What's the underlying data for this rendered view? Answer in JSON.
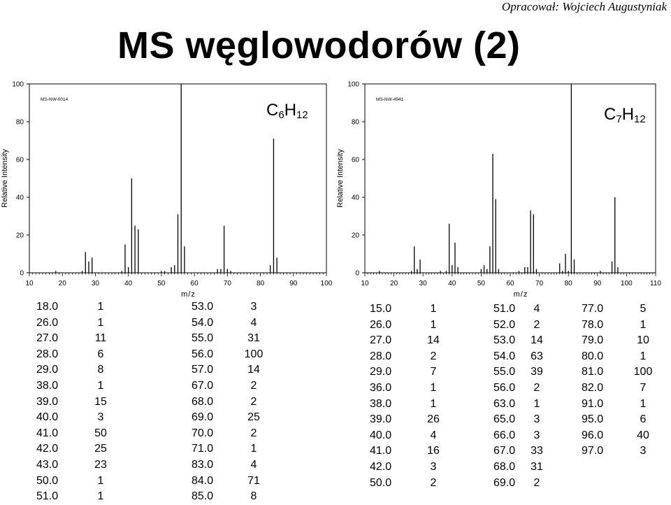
{
  "header": {
    "author": "Opracował: Wojciech Augustyniak",
    "title": "MS węglowodorów (2)"
  },
  "spectra": [
    {
      "formula": {
        "base1": "C",
        "sub1": "6",
        "base2": "H",
        "sub2": "12"
      },
      "label": "MS-NW-0014"
    },
    {
      "formula": {
        "base1": "C",
        "sub1": "7",
        "base2": "H",
        "sub2": "12"
      },
      "label": "MS-NW-4941"
    }
  ],
  "chart_data": [
    {
      "type": "bar",
      "title": "",
      "xlabel": "m/z",
      "ylabel": "Relative Intensity",
      "xlim": [
        10,
        100
      ],
      "ylim": [
        0,
        100
      ],
      "xticks": [
        10,
        20,
        30,
        40,
        50,
        60,
        70,
        80,
        90,
        100
      ],
      "yticks": [
        0,
        20,
        40,
        60,
        80,
        100
      ],
      "series": [
        {
          "x": [
            18.0,
            26.0,
            27.0,
            28.0,
            29.0,
            38.0,
            39.0,
            40.0,
            41.0,
            42.0,
            43.0,
            50.0,
            51.0,
            53.0,
            54.0,
            55.0,
            56.0,
            57.0,
            67.0,
            68.0,
            69.0,
            70.0,
            71.0,
            83.0,
            84.0,
            85.0
          ],
          "values": [
            1,
            1,
            11,
            6,
            8,
            1,
            15,
            3,
            50,
            25,
            23,
            1,
            1,
            3,
            4,
            31,
            100,
            14,
            2,
            2,
            25,
            2,
            1,
            4,
            71,
            8
          ]
        }
      ]
    },
    {
      "type": "bar",
      "title": "",
      "xlabel": "m/z",
      "ylabel": "Relative Intensity",
      "xlim": [
        10,
        110
      ],
      "ylim": [
        0,
        100
      ],
      "xticks": [
        10,
        20,
        30,
        40,
        50,
        60,
        70,
        80,
        90,
        100,
        110
      ],
      "yticks": [
        0,
        20,
        40,
        60,
        80,
        100
      ],
      "series": [
        {
          "x": [
            15.0,
            26.0,
            27.0,
            28.0,
            29.0,
            36.0,
            38.0,
            39.0,
            40.0,
            41.0,
            42.0,
            50.0,
            51.0,
            52.0,
            53.0,
            54.0,
            55.0,
            56.0,
            63.0,
            65.0,
            66.0,
            67.0,
            68.0,
            69.0,
            77.0,
            78.0,
            79.0,
            80.0,
            81.0,
            82.0,
            91.0,
            95.0,
            96.0,
            97.0
          ],
          "values": [
            1,
            1,
            14,
            2,
            7,
            1,
            1,
            26,
            4,
            16,
            3,
            2,
            4,
            2,
            14,
            63,
            39,
            2,
            1,
            3,
            3,
            33,
            31,
            2,
            5,
            1,
            10,
            1,
            100,
            7,
            1,
            6,
            40,
            3
          ]
        }
      ]
    }
  ],
  "tables": [
    {
      "columns": [
        [
          "18.0",
          "26.0",
          "27.0",
          "28.0",
          "29.0",
          "38.0",
          "39.0",
          "40.0",
          "41.0",
          "42.0",
          "43.0",
          "50.0",
          "51.0"
        ],
        [
          "1",
          "1",
          "11",
          "6",
          "8",
          "1",
          "15",
          "3",
          "50",
          "25",
          "23",
          "1",
          "1"
        ],
        [
          "53.0",
          "54.0",
          "55.0",
          "56.0",
          "57.0",
          "67.0",
          "68.0",
          "69.0",
          "70.0",
          "71.0",
          "83.0",
          "84.0",
          "85.0"
        ],
        [
          "3",
          "4",
          "31",
          "100",
          "14",
          "2",
          "2",
          "25",
          "2",
          "1",
          "4",
          "71",
          "8"
        ]
      ]
    },
    {
      "columns": [
        [
          "15.0",
          "26.0",
          "27.0",
          "28.0",
          "29.0",
          "36.0",
          "38.0",
          "39.0",
          "40.0",
          "41.0",
          "42.0",
          "50.0"
        ],
        [
          "1",
          "1",
          "14",
          "2",
          "7",
          "1",
          "1",
          "26",
          "4",
          "16",
          "3",
          "2"
        ],
        [
          "51.0",
          "52.0",
          "53.0",
          "54.0",
          "55.0",
          "56.0",
          "63.0",
          "65.0",
          "66.0",
          "67.0",
          "68.0",
          "69.0"
        ],
        [
          "4",
          "2",
          "14",
          "63",
          "39",
          "2",
          "1",
          "3",
          "3",
          "33",
          "31",
          "2"
        ],
        [
          "77.0",
          "78.0",
          "79.0",
          "80.0",
          "81.0",
          "82.0",
          "91.0",
          "95.0",
          "96.0",
          "97.0"
        ],
        [
          "5",
          "1",
          "10",
          "1",
          "100",
          "7",
          "1",
          "6",
          "40",
          "3"
        ]
      ]
    }
  ]
}
